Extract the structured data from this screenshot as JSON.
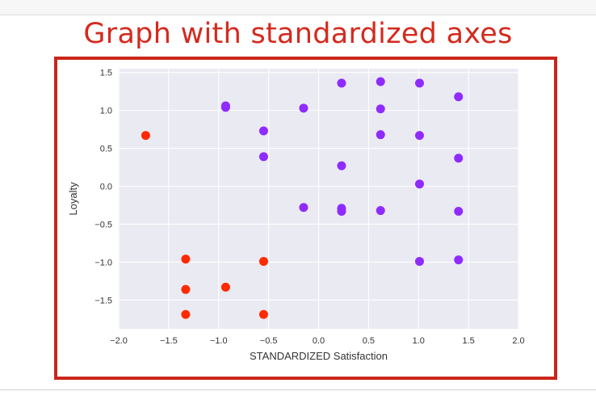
{
  "slide": {
    "title": "Graph with standardized axes"
  },
  "chart_data": {
    "type": "scatter",
    "title": "",
    "xlabel": "STANDARDIZED Satisfaction",
    "ylabel": "Loyalty",
    "xlim": [
      -2.0,
      2.0
    ],
    "ylim": [
      -1.88,
      1.55
    ],
    "xticks": [
      -2.0,
      -1.5,
      -1.0,
      -0.5,
      0.0,
      0.5,
      1.0,
      1.5,
      2.0
    ],
    "xtick_labels": [
      "−2.0",
      "−1.5",
      "−1.0",
      "−0.5",
      "0.0",
      "0.5",
      "1.0",
      "1.5",
      "2.0"
    ],
    "yticks": [
      -1.5,
      -1.0,
      -0.5,
      0.0,
      0.5,
      1.0,
      1.5
    ],
    "ytick_labels": [
      "−1.5",
      "−1.0",
      "−0.5",
      "0.0",
      "0.5",
      "1.0",
      "1.5"
    ],
    "grid": true,
    "background_color": "#eaeaf2",
    "series": [
      {
        "color": "#ff2a00",
        "points": [
          {
            "x": -1.73,
            "y": 0.67
          },
          {
            "x": -1.33,
            "y": -0.96
          },
          {
            "x": -1.33,
            "y": -1.36
          },
          {
            "x": -1.33,
            "y": -1.69
          },
          {
            "x": -0.93,
            "y": -1.33
          },
          {
            "x": -0.55,
            "y": -0.99
          },
          {
            "x": -0.55,
            "y": -1.69
          }
        ]
      },
      {
        "color": "#8f2bff",
        "points": [
          {
            "x": -0.93,
            "y": 1.06
          },
          {
            "x": -0.93,
            "y": 1.04
          },
          {
            "x": -0.55,
            "y": 0.73
          },
          {
            "x": -0.55,
            "y": 0.39
          },
          {
            "x": -0.15,
            "y": 1.03
          },
          {
            "x": -0.15,
            "y": -0.28
          },
          {
            "x": 0.23,
            "y": 1.36
          },
          {
            "x": 0.23,
            "y": 0.27
          },
          {
            "x": 0.23,
            "y": -0.29
          },
          {
            "x": 0.23,
            "y": -0.33
          },
          {
            "x": 0.62,
            "y": 1.38
          },
          {
            "x": 0.62,
            "y": 1.02
          },
          {
            "x": 0.62,
            "y": 0.68
          },
          {
            "x": 0.62,
            "y": -0.32
          },
          {
            "x": 1.01,
            "y": 1.36
          },
          {
            "x": 1.01,
            "y": 0.67
          },
          {
            "x": 1.01,
            "y": 0.03
          },
          {
            "x": 1.01,
            "y": -0.99
          },
          {
            "x": 1.4,
            "y": 1.18
          },
          {
            "x": 1.4,
            "y": 0.37
          },
          {
            "x": 1.4,
            "y": -0.33
          },
          {
            "x": 1.4,
            "y": -0.97
          }
        ]
      }
    ]
  }
}
